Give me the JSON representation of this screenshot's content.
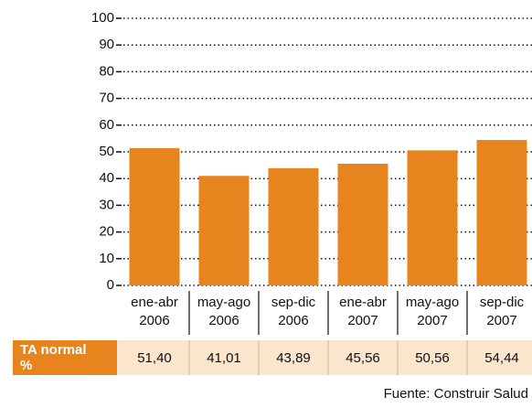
{
  "chart_data": {
    "type": "bar",
    "categories": [
      [
        "ene-abr",
        "2006"
      ],
      [
        "may-ago",
        "2006"
      ],
      [
        "sep-dic",
        "2006"
      ],
      [
        "ene-abr",
        "2007"
      ],
      [
        "may-ago",
        "2007"
      ],
      [
        "sep-dic",
        "2007"
      ]
    ],
    "series": [
      {
        "name": "TA normal %",
        "color": "#e8841e",
        "values": [
          51.4,
          41.01,
          43.89,
          45.56,
          50.56,
          54.44
        ],
        "value_labels": [
          "51,40",
          "41,01",
          "43,89",
          "45,56",
          "50,56",
          "54,44"
        ]
      }
    ],
    "ylim": [
      0,
      100
    ],
    "yticks": [
      0,
      10,
      20,
      30,
      40,
      50,
      60,
      70,
      80,
      90,
      100
    ],
    "grid": true,
    "source": "Fuente: Construir Salud"
  }
}
